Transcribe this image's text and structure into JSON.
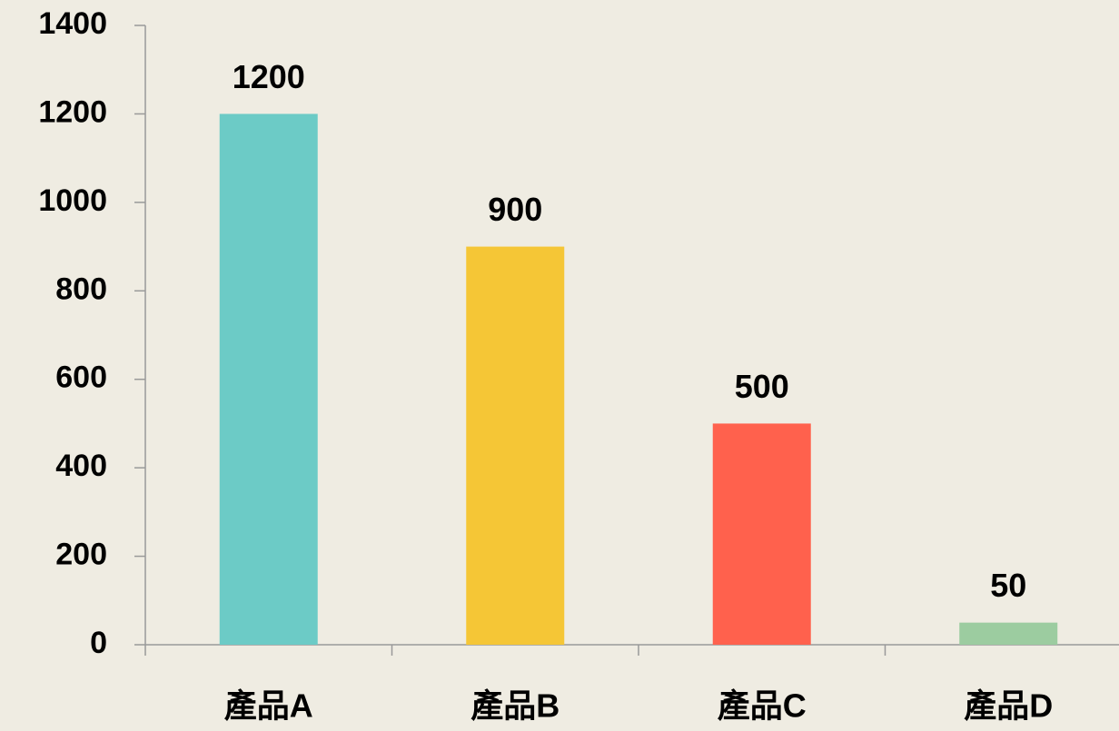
{
  "chart_data": {
    "type": "bar",
    "categories": [
      "產品A",
      "產品B",
      "產品C",
      "產品D"
    ],
    "values": [
      1200,
      900,
      500,
      50
    ],
    "colors": [
      "#6ccbc6",
      "#f5c636",
      "#ff614d",
      "#9ccca0"
    ],
    "ylim": [
      0,
      1400
    ],
    "yticks": [
      0,
      200,
      400,
      600,
      800,
      1000,
      1200,
      1400
    ],
    "grid": false
  }
}
